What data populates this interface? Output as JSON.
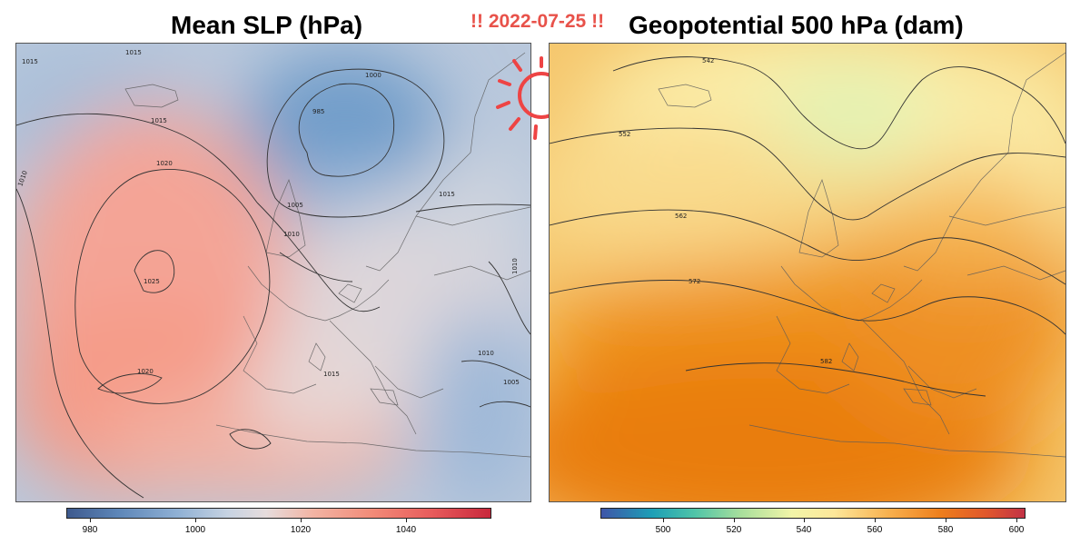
{
  "titles": {
    "left": "Mean SLP (hPa)",
    "right": "Geopotential 500 hPa (dam)",
    "date": "!! 2022-07-25 !!"
  },
  "colors": {
    "date_accent": "#e8524a",
    "sun_icon": "#ee4444"
  },
  "icon": "sun-icon",
  "slp_map": {
    "variable": "Mean sea level pressure",
    "units": "hPa",
    "colorbar_ticks": [
      "980",
      "1000",
      "1020",
      "1040"
    ],
    "colorbar_range": [
      975,
      1055
    ],
    "contour_labels": [
      "1015",
      "1015",
      "1000",
      "985",
      "1015",
      "1020",
      "1010",
      "1005",
      "1010",
      "1015",
      "1010",
      "1025",
      "1020",
      "1015",
      "1010",
      "1005"
    ],
    "contour_levels": [
      985,
      1000,
      1005,
      1010,
      1015,
      1020,
      1025
    ]
  },
  "z500_map": {
    "variable": "Geopotential height at 500 hPa",
    "units": "dam",
    "colorbar_ticks": [
      "500",
      "520",
      "540",
      "560",
      "580",
      "600"
    ],
    "colorbar_range": [
      486,
      603
    ],
    "contour_labels": [
      "542",
      "552",
      "562",
      "572",
      "582"
    ],
    "contour_levels": [
      542,
      552,
      562,
      572,
      582
    ]
  }
}
